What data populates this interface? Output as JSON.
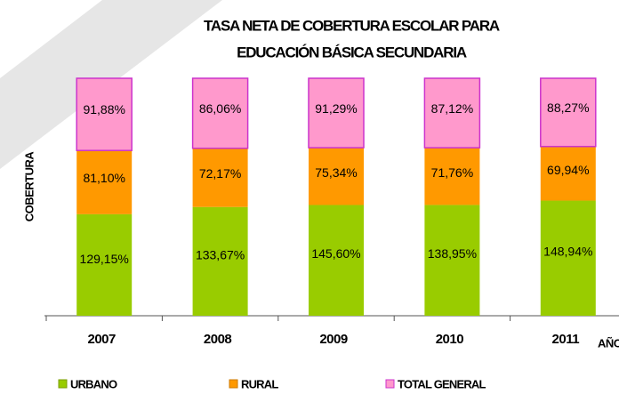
{
  "chart_data": {
    "type": "bar",
    "stacked": "percent",
    "title": [
      "TASA  NETA DE COBERTURA ESCOLAR PARA",
      "EDUCACIÓN BÁSICA SECUNDARIA"
    ],
    "y_label": "COBERTURA",
    "x_label": "AÑO",
    "categories": [
      "2007",
      "2008",
      "2009",
      "2010",
      "2011"
    ],
    "series": [
      {
        "name": "URBANO",
        "color": "#99cc00",
        "values": [
          129.15,
          133.67,
          145.6,
          138.95,
          148.94
        ],
        "value_labels": [
          "129,15%",
          "133,67%",
          "145,60%",
          "138,95%",
          "148,94%"
        ]
      },
      {
        "name": "RURAL",
        "color": "#ff9900",
        "values": [
          81.1,
          72.17,
          75.34,
          71.76,
          69.94
        ],
        "value_labels": [
          "81,10%",
          "72,17%",
          "75,34%",
          "71,76%",
          "69,94%"
        ]
      },
      {
        "name": "TOTAL GENERAL",
        "color": "#ff99cc",
        "values": [
          91.88,
          86.06,
          91.29,
          87.12,
          88.27
        ],
        "value_labels": [
          "91,88%",
          "86,06%",
          "91,29%",
          "87,12%",
          "88,27%"
        ]
      }
    ],
    "legend": "bottom"
  }
}
